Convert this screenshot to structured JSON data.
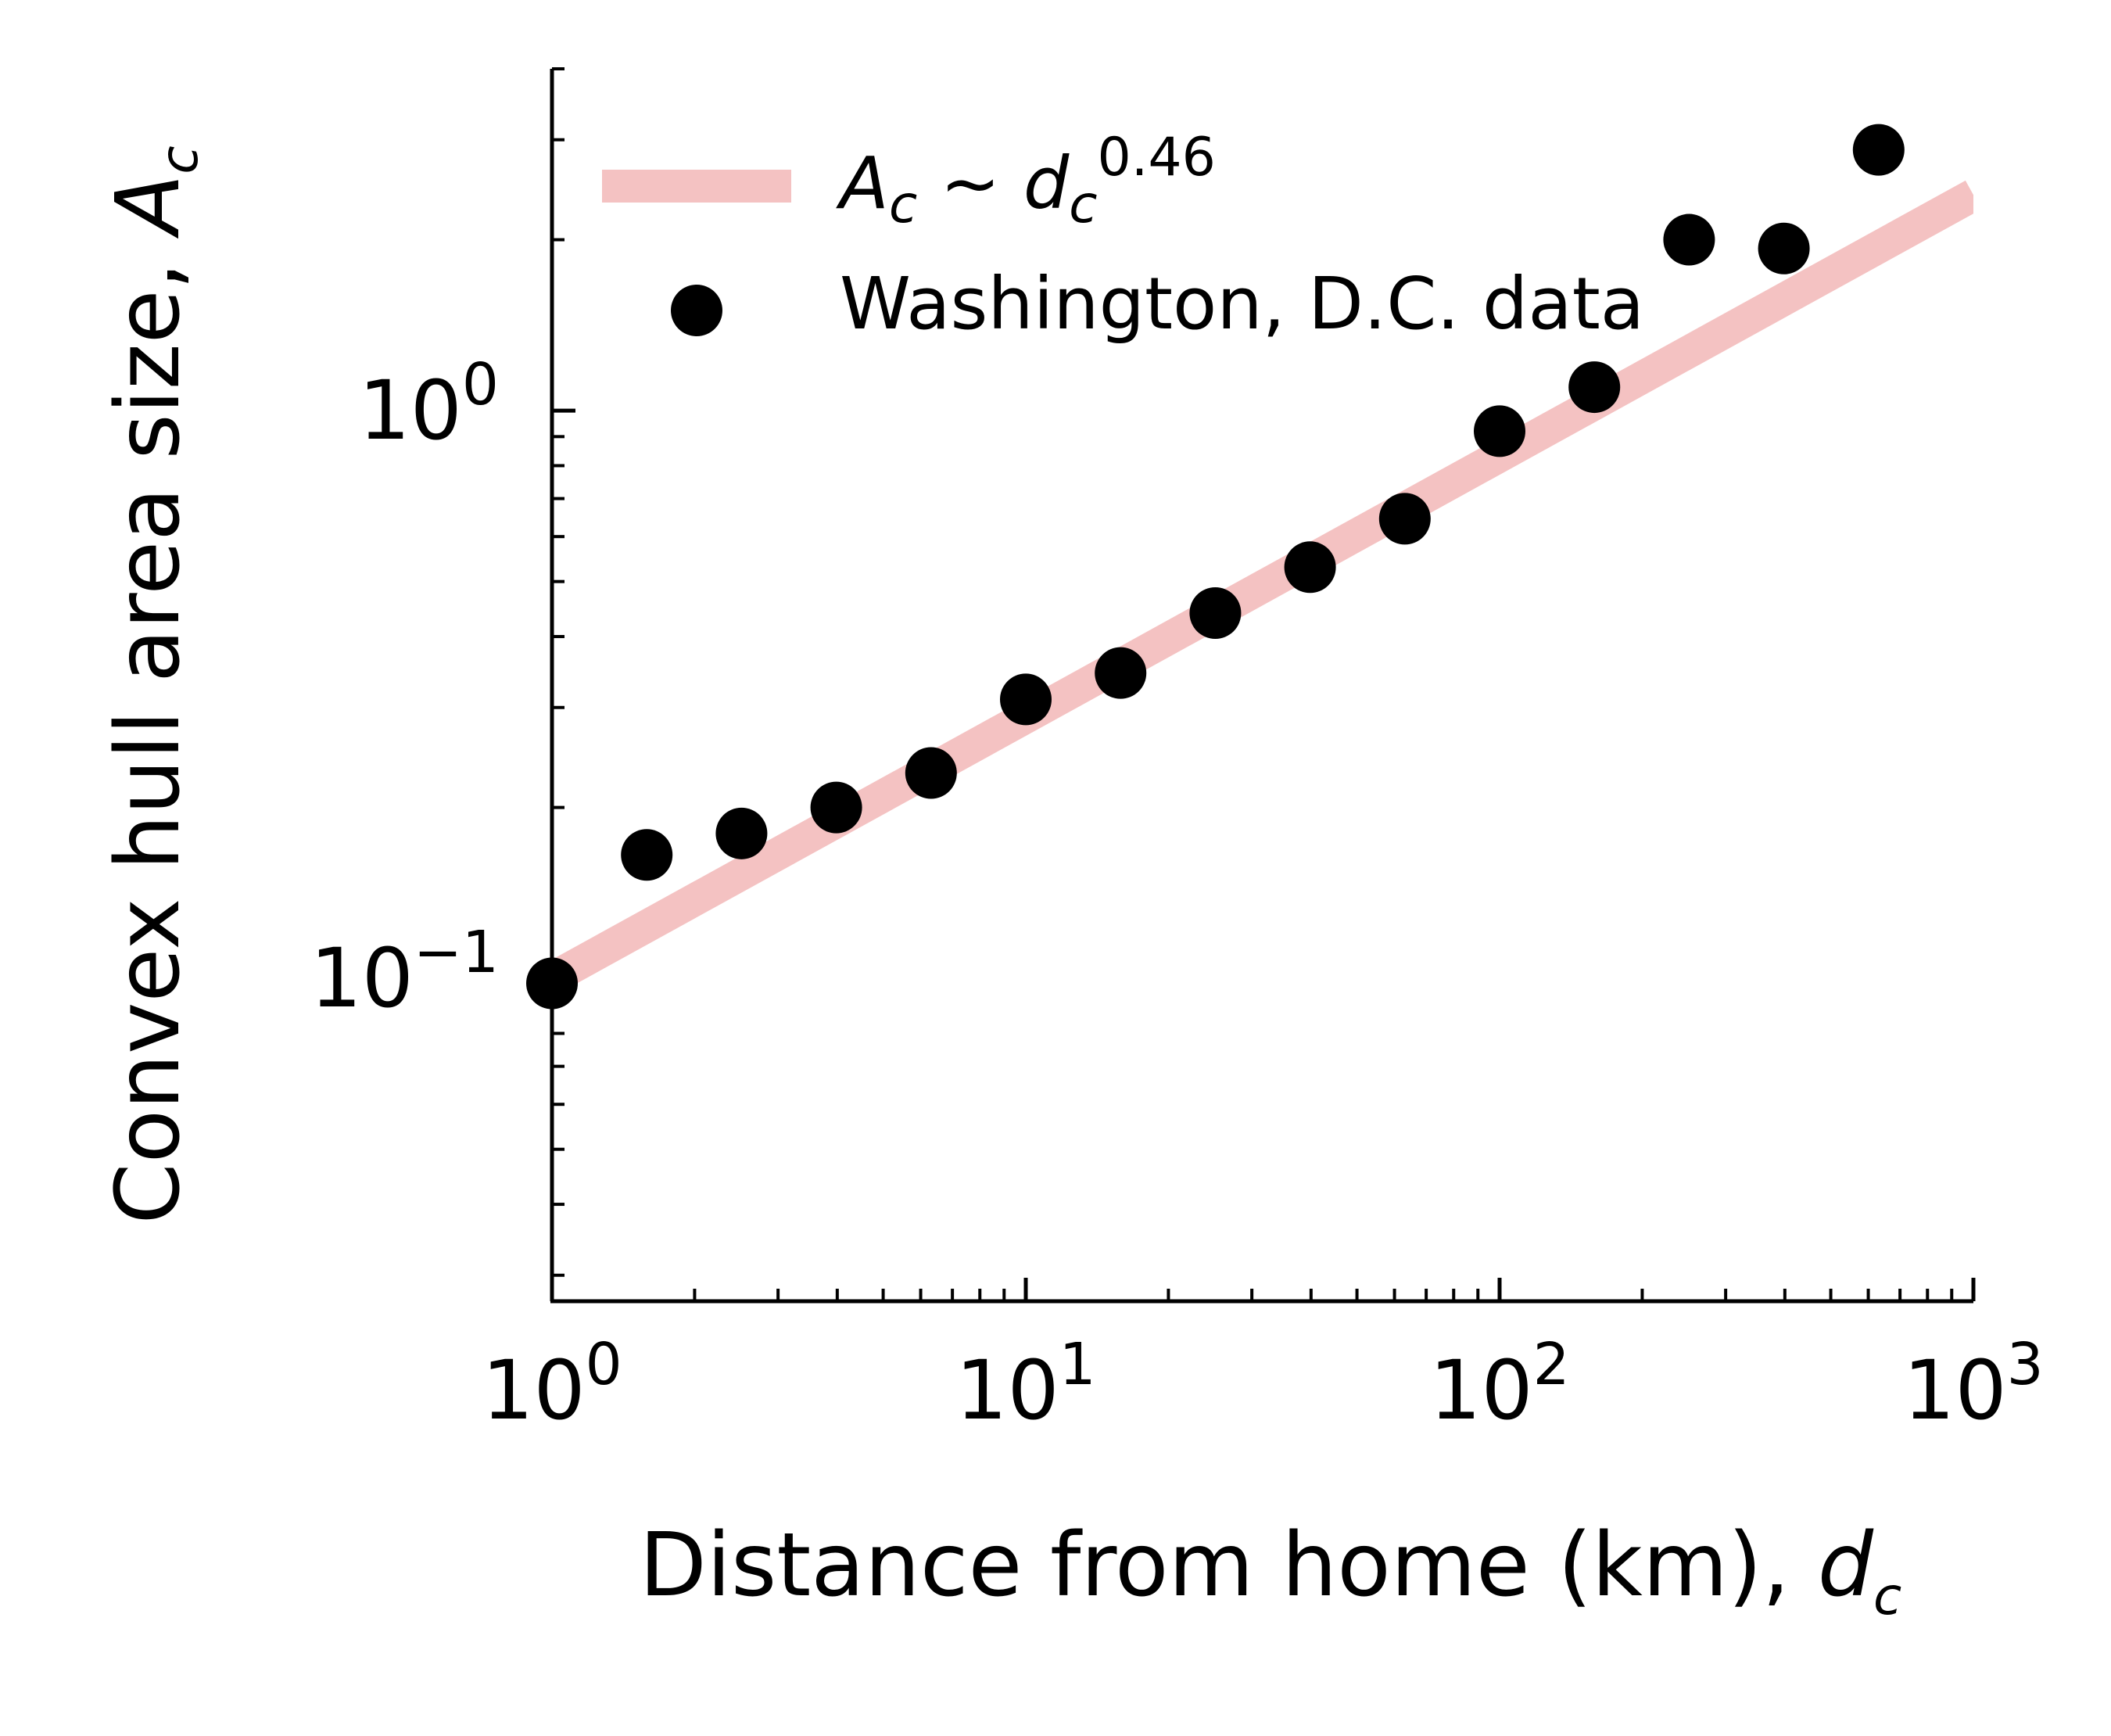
{
  "chart_data": {
    "type": "scatter",
    "xscale": "log",
    "yscale": "log",
    "xlim": [
      1,
      1000
    ],
    "ylim": [
      0.027,
      4.0
    ],
    "grid": false,
    "legend_position": "top-left",
    "xlabel": {
      "text": "Distance from home (km), ",
      "var": "d",
      "sub": "c"
    },
    "ylabel": {
      "text": "Convex hull area size, ",
      "var": "A",
      "sub": "c"
    },
    "x_ticks": [
      {
        "value": 1,
        "base": "10",
        "exp": "0"
      },
      {
        "value": 10,
        "base": "10",
        "exp": "1"
      },
      {
        "value": 100,
        "base": "10",
        "exp": "2"
      },
      {
        "value": 1000,
        "base": "10",
        "exp": "3"
      }
    ],
    "y_ticks": [
      {
        "value": 0.1,
        "base": "10",
        "exp": "−1"
      },
      {
        "value": 1,
        "base": "10",
        "exp": "0"
      }
    ],
    "series": [
      {
        "type": "line",
        "color": "#f4c2c2",
        "legend": {
          "A": "A",
          "c": "c",
          "tilde": " ~ ",
          "d": "d",
          "exp": "0.46"
        },
        "fit": {
          "coefficient": 0.1,
          "exponent": 0.46
        },
        "x": [
          1,
          1000
        ]
      },
      {
        "name": "Washington, D.C. data",
        "type": "scatter",
        "color": "#000000",
        "x": [
          1.0,
          1.585,
          2.512,
          3.981,
          6.31,
          10.0,
          15.85,
          25.12,
          39.81,
          63.1,
          100.0,
          158.5,
          251.2,
          398.1,
          631.0
        ],
        "y": [
          0.098,
          0.165,
          0.18,
          0.2,
          0.23,
          0.31,
          0.345,
          0.44,
          0.53,
          0.645,
          0.92,
          1.1,
          2.0,
          1.93,
          2.88
        ]
      }
    ]
  }
}
